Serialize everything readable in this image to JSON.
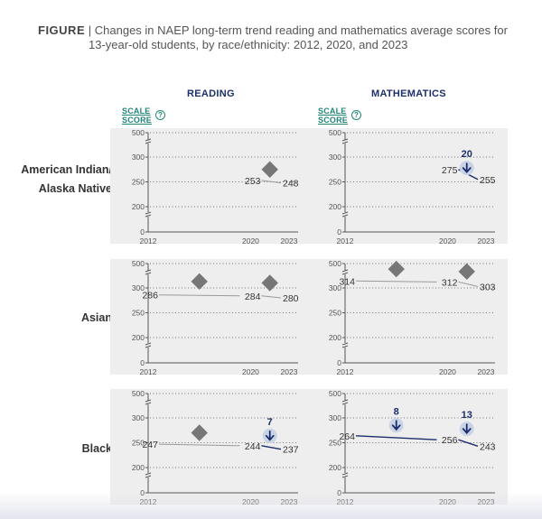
{
  "figure": {
    "label": "FIGURE",
    "separator": "|",
    "title_line1": "Changes in NAEP long-term trend reading and mathematics average scores for",
    "title_line2": "13-year-old students, by race/ethnicity: 2012, 2020, and 2023"
  },
  "columns": [
    {
      "label": "READING"
    },
    {
      "label": "MATHEMATICS"
    }
  ],
  "scale_label_line1": "SCALE",
  "scale_label_line2": "SCORE",
  "help_icon_glyph": "?",
  "rows": [
    {
      "line1": "American Indian/",
      "line2": "Alaska Native"
    },
    {
      "line1": "Asian",
      "line2": ""
    },
    {
      "line1": "Black",
      "line2": ""
    }
  ],
  "colors": {
    "gray_line": "#9a9a9a",
    "navy_line": "#1c2f6b",
    "diamond": "#777777",
    "badge_fill": "#c9d3e6",
    "arrow": "#1c2f6b",
    "grid": "#777777",
    "axis": "#555555",
    "panel": "#eeeeee"
  },
  "chart_data": {
    "type": "line",
    "subject": "NAEP long-term trend average scores, 13-year-olds",
    "x_axis": {
      "min": 2012,
      "max": 2023,
      "ticks": [
        2012,
        2020,
        2023
      ]
    },
    "y_axis": {
      "min": 0,
      "max": 500,
      "ticks": [
        0,
        200,
        250,
        300,
        500
      ],
      "axis_break": true
    },
    "legend_notes": {
      "diamond": "not significantly different (gray marker)",
      "arrow_badge": "significant decrease, labeled with size of change"
    },
    "panels": [
      {
        "row": "American Indian/Alaska Native",
        "subject": "READING",
        "points": [
          {
            "year": 2020,
            "score": 253
          },
          {
            "year": 2023,
            "score": 248
          }
        ],
        "segment_style": "gray",
        "markers": [
          {
            "type": "diamond",
            "year": 2021.5,
            "score": 275
          }
        ]
      },
      {
        "row": "American Indian/Alaska Native",
        "subject": "MATHEMATICS",
        "points": [
          {
            "year": 2020,
            "score": 275
          },
          {
            "year": 2023,
            "score": 255
          }
        ],
        "segment_style": "navy",
        "markers": [
          {
            "type": "decrease",
            "year": 2021.5,
            "score": 278,
            "label": "20"
          }
        ]
      },
      {
        "row": "Asian",
        "subject": "READING",
        "points": [
          {
            "year": 2012,
            "score": 286
          },
          {
            "year": 2020,
            "score": 284
          },
          {
            "year": 2023,
            "score": 280
          }
        ],
        "segment_style": "gray",
        "markers": [
          {
            "type": "diamond",
            "year": 2016,
            "score": 313
          },
          {
            "type": "diamond",
            "year": 2021.5,
            "score": 310
          }
        ]
      },
      {
        "row": "Asian",
        "subject": "MATHEMATICS",
        "points": [
          {
            "year": 2012,
            "score": 314
          },
          {
            "year": 2020,
            "score": 312
          },
          {
            "year": 2023,
            "score": 303
          }
        ],
        "segment_style": "gray",
        "markers": [
          {
            "type": "diamond",
            "year": 2016,
            "score": 338
          },
          {
            "type": "diamond",
            "year": 2021.5,
            "score": 333
          }
        ]
      },
      {
        "row": "Black",
        "subject": "READING",
        "points": [
          {
            "year": 2012,
            "score": 247
          },
          {
            "year": 2020,
            "score": 244
          },
          {
            "year": 2023,
            "score": 237
          }
        ],
        "segment_style": "gray_then_navy",
        "markers": [
          {
            "type": "diamond",
            "year": 2016,
            "score": 270
          },
          {
            "type": "decrease",
            "year": 2021.5,
            "score": 264,
            "label": "7"
          }
        ]
      },
      {
        "row": "Black",
        "subject": "MATHEMATICS",
        "points": [
          {
            "year": 2012,
            "score": 264
          },
          {
            "year": 2020,
            "score": 256
          },
          {
            "year": 2023,
            "score": 243
          }
        ],
        "segment_style": "navy",
        "markers": [
          {
            "type": "decrease",
            "year": 2016,
            "score": 285,
            "label": "8"
          },
          {
            "type": "decrease",
            "year": 2021.5,
            "score": 278,
            "label": "13"
          }
        ]
      }
    ]
  }
}
